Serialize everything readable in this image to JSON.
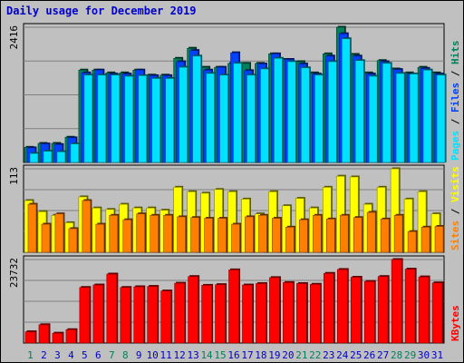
{
  "title": "Daily usage for December 2019",
  "colors": {
    "background": "#c0c0c0",
    "plot": "#c0c0c0",
    "hits": "#00805c",
    "files": "#0040ff",
    "pages": "#00e0ff",
    "visits": "#ffff00",
    "sites": "#ff8000",
    "kbytes": "#ff0000",
    "weekend_label": "#00805c",
    "weekday_label": "#0000cc"
  },
  "chart_data": [
    {
      "type": "bar",
      "name": "hits-files-pages",
      "ymax_label": "2416",
      "ylim": [
        0,
        2416
      ],
      "legend": [
        "Pages",
        "Files",
        "Hits"
      ],
      "categories": [
        "1",
        "2",
        "3",
        "4",
        "5",
        "6",
        "7",
        "8",
        "9",
        "10",
        "11",
        "12",
        "13",
        "14",
        "15",
        "16",
        "17",
        "18",
        "19",
        "20",
        "21",
        "22",
        "23",
        "24",
        "25",
        "26",
        "27",
        "28",
        "29",
        "30",
        "31"
      ],
      "series": [
        {
          "name": "Hits",
          "values": [
            270,
            340,
            340,
            450,
            1650,
            1650,
            1600,
            1600,
            1650,
            1560,
            1560,
            1860,
            2040,
            1700,
            1700,
            1770,
            1770,
            1770,
            1940,
            1840,
            1800,
            1600,
            1940,
            2416,
            1930,
            1600,
            1820,
            1670,
            1600,
            1700,
            1600
          ]
        },
        {
          "name": "Files",
          "values": [
            260,
            330,
            320,
            440,
            1600,
            1650,
            1580,
            1580,
            1650,
            1550,
            1550,
            1800,
            2000,
            1650,
            1700,
            1960,
            1640,
            1760,
            1940,
            1840,
            1760,
            1580,
            1900,
            2300,
            1900,
            1580,
            1800,
            1660,
            1580,
            1680,
            1580
          ]
        },
        {
          "name": "Pages",
          "values": [
            160,
            200,
            190,
            330,
            1560,
            1560,
            1560,
            1540,
            1550,
            1500,
            1500,
            1700,
            1900,
            1590,
            1560,
            1770,
            1560,
            1670,
            1860,
            1800,
            1690,
            1560,
            1800,
            2210,
            1820,
            1540,
            1770,
            1590,
            1580,
            1650,
            1560
          ]
        }
      ]
    },
    {
      "type": "bar",
      "name": "visits-sites",
      "ymax_label": "113",
      "ylim": [
        0,
        113
      ],
      "legend": [
        "Sites",
        "Visits"
      ],
      "categories": [
        "1",
        "2",
        "3",
        "4",
        "5",
        "6",
        "7",
        "8",
        "9",
        "10",
        "11",
        "12",
        "13",
        "14",
        "15",
        "16",
        "17",
        "18",
        "19",
        "20",
        "21",
        "22",
        "23",
        "24",
        "25",
        "26",
        "27",
        "28",
        "29",
        "30",
        "31"
      ],
      "series": [
        {
          "name": "Visits",
          "values": [
            70,
            55,
            50,
            40,
            75,
            60,
            58,
            65,
            60,
            60,
            57,
            88,
            82,
            80,
            85,
            82,
            72,
            52,
            82,
            63,
            73,
            60,
            88,
            103,
            102,
            65,
            88,
            113,
            72,
            82,
            52
          ]
        },
        {
          "name": "Sites",
          "values": [
            65,
            38,
            52,
            32,
            70,
            38,
            50,
            44,
            52,
            50,
            50,
            48,
            47,
            46,
            46,
            38,
            48,
            50,
            46,
            34,
            44,
            50,
            45,
            50,
            47,
            54,
            45,
            50,
            28,
            34,
            35
          ]
        }
      ]
    },
    {
      "type": "bar",
      "name": "kbytes",
      "ymax_label": "23732",
      "ylim": [
        0,
        23732
      ],
      "legend": [
        "KBytes"
      ],
      "categories": [
        "1",
        "2",
        "3",
        "4",
        "5",
        "6",
        "7",
        "8",
        "9",
        "10",
        "11",
        "12",
        "13",
        "14",
        "15",
        "16",
        "17",
        "18",
        "19",
        "20",
        "21",
        "22",
        "23",
        "24",
        "25",
        "26",
        "27",
        "28",
        "29",
        "30",
        "31"
      ],
      "series": [
        {
          "name": "KBytes",
          "values": [
            3200,
            5200,
            2800,
            3800,
            15800,
            16500,
            19600,
            15800,
            16000,
            16100,
            14800,
            17000,
            18900,
            16400,
            16600,
            20800,
            16500,
            16900,
            18600,
            17200,
            16900,
            16700,
            19800,
            20900,
            18700,
            17500,
            18900,
            23732,
            21000,
            18800,
            17100
          ]
        }
      ]
    }
  ],
  "x_axis": {
    "labels": [
      "1",
      "2",
      "3",
      "4",
      "5",
      "6",
      "7",
      "8",
      "9",
      "10",
      "11",
      "12",
      "13",
      "14",
      "15",
      "16",
      "17",
      "18",
      "19",
      "20",
      "21",
      "22",
      "23",
      "24",
      "25",
      "26",
      "27",
      "28",
      "29",
      "30",
      "31"
    ],
    "weekend": [
      1,
      7,
      8,
      14,
      15,
      21,
      22,
      28,
      29
    ]
  }
}
